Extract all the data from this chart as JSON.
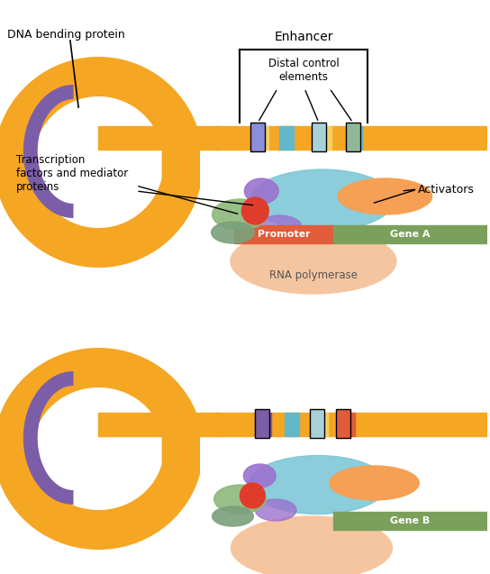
{
  "bg_color": "#ffffff",
  "dna_color": "#F5A623",
  "promoter_color": "#E05C3A",
  "gene_a_color": "#7BA05B",
  "gene_b_color": "#7BA05B",
  "rna_pol_color": "#F5C5A0",
  "blue_oval_color": "#7EC8D8",
  "orange_oval_color": "#F5A055",
  "purple_arc_color": "#7B5EA7",
  "red_circle_color": "#E03C2C",
  "teal_stripe_color": "#62B8C8",
  "yellow_stripe_color": "#F5D060",
  "activator_box_color": "#A8D0D8",
  "labels": {
    "dna_bending": "DNA bending protein",
    "enhancer": "Enhancer",
    "distal": "Distal control\nelements",
    "tf_mediator": "Transcription\nfactors and mediator\nproteins",
    "activators": "Activators",
    "promoter": "Promoter",
    "gene_a": "Gene A",
    "rna_pol": "RNA polymerase",
    "gene_b": "Gene B"
  }
}
